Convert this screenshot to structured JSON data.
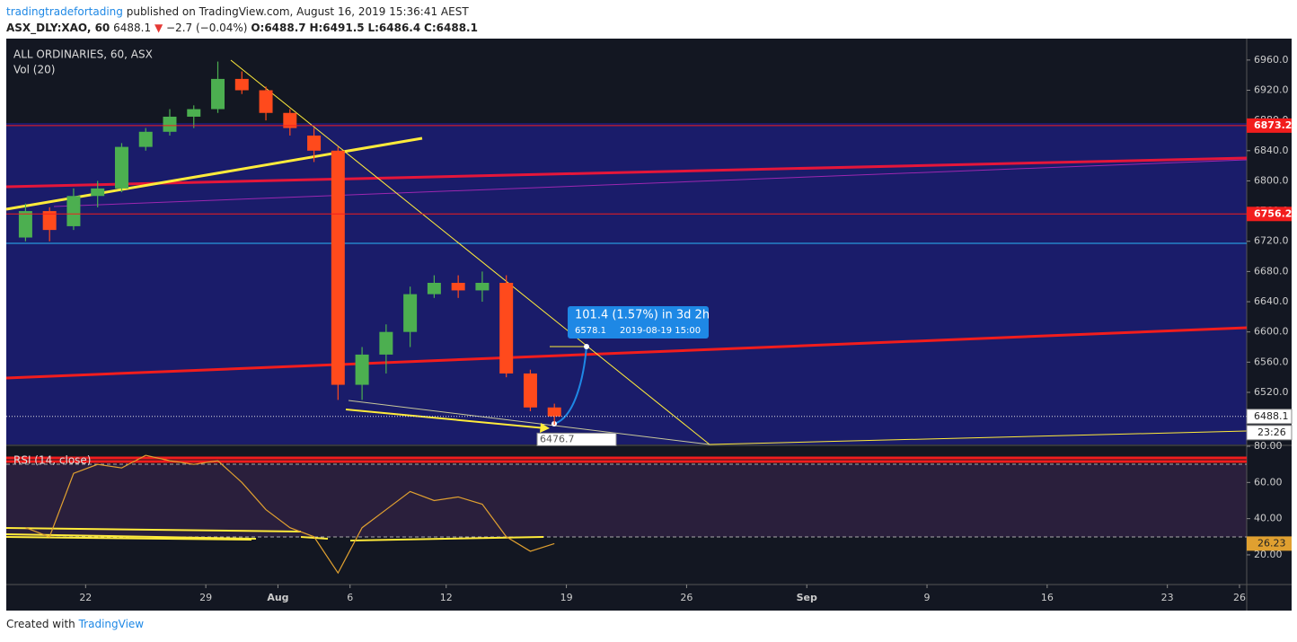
{
  "header": {
    "author": "tradingtradefortading",
    "published": "published on TradingView.com, August 16, 2019 15:36:41 AEST",
    "symbol": "ASX_DLY:XAO, 60",
    "last": "6488.1",
    "change": "−2.7 (−0.04%)",
    "open": "O:6488.7",
    "high": "H:6491.5",
    "low": "L:6486.4",
    "close": "C:6488.1"
  },
  "chart_data": [
    {
      "type": "candlestick",
      "title": "ALL ORDINARIES, 60, ASX",
      "subtitle": "Vol (20)",
      "x": [
        -3,
        -2,
        -1,
        0,
        1,
        2,
        3,
        4,
        5,
        6,
        7,
        8,
        9,
        10,
        11,
        12,
        13,
        14,
        15,
        16,
        17,
        18,
        19
      ],
      "open": [
        6725,
        6760,
        6740,
        6780,
        6790,
        6845,
        6865,
        6885,
        6895,
        6935,
        6920,
        6890,
        6860,
        6840,
        6530,
        6570,
        6600,
        6650,
        6665,
        6655,
        6665,
        6545,
        6500
      ],
      "high": [
        6770,
        6765,
        6790,
        6800,
        6850,
        6870,
        6895,
        6900,
        6958,
        6945,
        6925,
        6895,
        6870,
        6845,
        6580,
        6610,
        6660,
        6675,
        6675,
        6680,
        6675,
        6550,
        6505
      ],
      "low": [
        6720,
        6720,
        6735,
        6765,
        6785,
        6840,
        6860,
        6870,
        6890,
        6915,
        6880,
        6860,
        6825,
        6510,
        6510,
        6545,
        6580,
        6645,
        6645,
        6640,
        6540,
        6495,
        6477
      ],
      "close": [
        6760,
        6735,
        6780,
        6790,
        6845,
        6865,
        6885,
        6895,
        6935,
        6920,
        6890,
        6870,
        6840,
        6530,
        6570,
        6600,
        6650,
        6665,
        6655,
        6665,
        6545,
        6500,
        6488.1
      ],
      "up_color": "#4caf50",
      "down_color": "#ff4a1c",
      "xlim": [
        -3.3,
        48.3
      ],
      "xticks": [
        {
          "value": 0,
          "label": "22"
        },
        {
          "value": 5,
          "label": "29"
        },
        {
          "value": 8,
          "label": "Aug"
        },
        {
          "value": 11,
          "label": "6"
        },
        {
          "value": 15,
          "label": "12"
        },
        {
          "value": 20,
          "label": "19"
        },
        {
          "value": 25,
          "label": "26"
        },
        {
          "value": 30,
          "label": "Sep"
        },
        {
          "value": 35,
          "label": "9"
        },
        {
          "value": 40,
          "label": "16"
        },
        {
          "value": 45,
          "label": "23"
        },
        {
          "value": 48,
          "label": "26"
        }
      ],
      "ylim": [
        6451,
        6986
      ],
      "yticks": [
        {
          "value": 6520,
          "label": "6520.0"
        },
        {
          "value": 6560,
          "label": "6560.0"
        },
        {
          "value": 6600,
          "label": "6600.0"
        },
        {
          "value": 6640,
          "label": "6640.0"
        },
        {
          "value": 6680,
          "label": "6680.0"
        },
        {
          "value": 6720,
          "label": "6720.0"
        },
        {
          "value": 6760,
          "label": "6760.0"
        },
        {
          "value": 6800,
          "label": "6800.0"
        },
        {
          "value": 6840,
          "label": "6840.0"
        },
        {
          "value": 6880,
          "label": "6880.0"
        },
        {
          "value": 6920,
          "label": "6920.0"
        },
        {
          "value": 6960,
          "label": "6960.0"
        }
      ],
      "price_lines": [
        6873.2,
        6756.2
      ],
      "price_line_color": "#f21d1d",
      "last_price": 6488.1,
      "countdown": "23:26",
      "low_marker": 6476.7,
      "measure": {
        "label": "101.4 (1.57%) in 3d 2h",
        "price": 6578.1,
        "time": "2019-08-19 15:00"
      }
    },
    {
      "type": "line",
      "title": "RSI (14, close)",
      "x": [
        -3,
        -2,
        -1,
        0,
        1,
        2,
        3,
        4,
        5,
        6,
        7,
        8,
        9,
        10,
        11,
        12,
        13,
        14,
        15,
        16,
        17,
        18,
        19
      ],
      "values": [
        35,
        30,
        65,
        70,
        68,
        75,
        72,
        70,
        72,
        60,
        45,
        35,
        30,
        10,
        35,
        45,
        55,
        50,
        52,
        48,
        30,
        22,
        26.23
      ],
      "color": "#e0a030",
      "last_value": 26.23,
      "ylim": [
        4.1,
        80
      ],
      "yticks": [
        {
          "value": 20,
          "label": "20.00"
        },
        {
          "value": 40,
          "label": "40.00"
        },
        {
          "value": 60,
          "label": "60.00"
        },
        {
          "value": 80,
          "label": "80.00"
        }
      ]
    }
  ],
  "footer": {
    "created_with": "Created with",
    "brand": "TradingView"
  }
}
